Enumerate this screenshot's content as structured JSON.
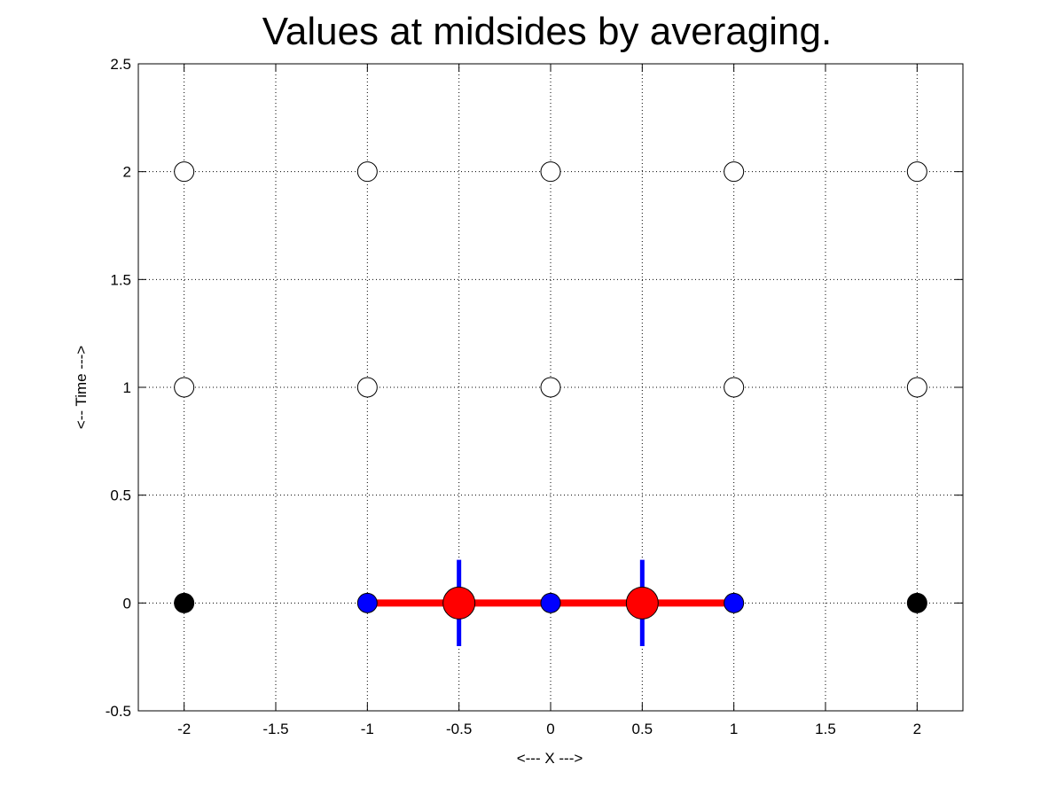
{
  "chart_data": {
    "type": "scatter",
    "title": "Values at midsides by averaging.",
    "xlabel": "<--- X --->",
    "ylabel": "<-- Time --->",
    "xlim": [
      -2.25,
      2.25
    ],
    "ylim": [
      -0.5,
      2.5
    ],
    "grid": true,
    "xticks": [
      -2,
      -1.5,
      -1,
      -0.5,
      0,
      0.5,
      1,
      1.5,
      2
    ],
    "xtick_labels": [
      "-2",
      "-1.5",
      "-1",
      "-0.5",
      "0",
      "0.5",
      "1",
      "1.5",
      "2"
    ],
    "yticks": [
      -0.5,
      0,
      0.5,
      1,
      1.5,
      2,
      2.5
    ],
    "ytick_labels": [
      "-0.5",
      "0",
      "0.5",
      "1",
      "1.5",
      "2",
      "2.5"
    ],
    "colors": {
      "open": "#ffffff",
      "known": "#000000",
      "stencil": "#0000ff",
      "midside": "#ff0000",
      "line": "#ff0000",
      "bar": "#0000ff"
    },
    "series": [
      {
        "kind": "open",
        "points": [
          [
            -2,
            1
          ],
          [
            -1,
            1
          ],
          [
            0,
            1
          ],
          [
            1,
            1
          ],
          [
            2,
            1
          ],
          [
            -2,
            2
          ],
          [
            -1,
            2
          ],
          [
            0,
            2
          ],
          [
            1,
            2
          ],
          [
            2,
            2
          ]
        ]
      },
      {
        "kind": "known",
        "points": [
          [
            -2,
            0
          ],
          [
            2,
            0
          ]
        ]
      },
      {
        "kind": "stencil",
        "points": [
          [
            -1,
            0
          ],
          [
            0,
            0
          ],
          [
            1,
            0
          ]
        ]
      },
      {
        "kind": "midside",
        "points": [
          [
            -0.5,
            0
          ],
          [
            0.5,
            0
          ]
        ]
      }
    ],
    "line_segment": {
      "x": [
        -1,
        1
      ],
      "y": [
        0,
        0
      ]
    },
    "vertical_bars": [
      {
        "x": -0.5,
        "y": [
          -0.2,
          0.2
        ]
      },
      {
        "x": 0.5,
        "y": [
          -0.2,
          0.2
        ]
      }
    ]
  }
}
